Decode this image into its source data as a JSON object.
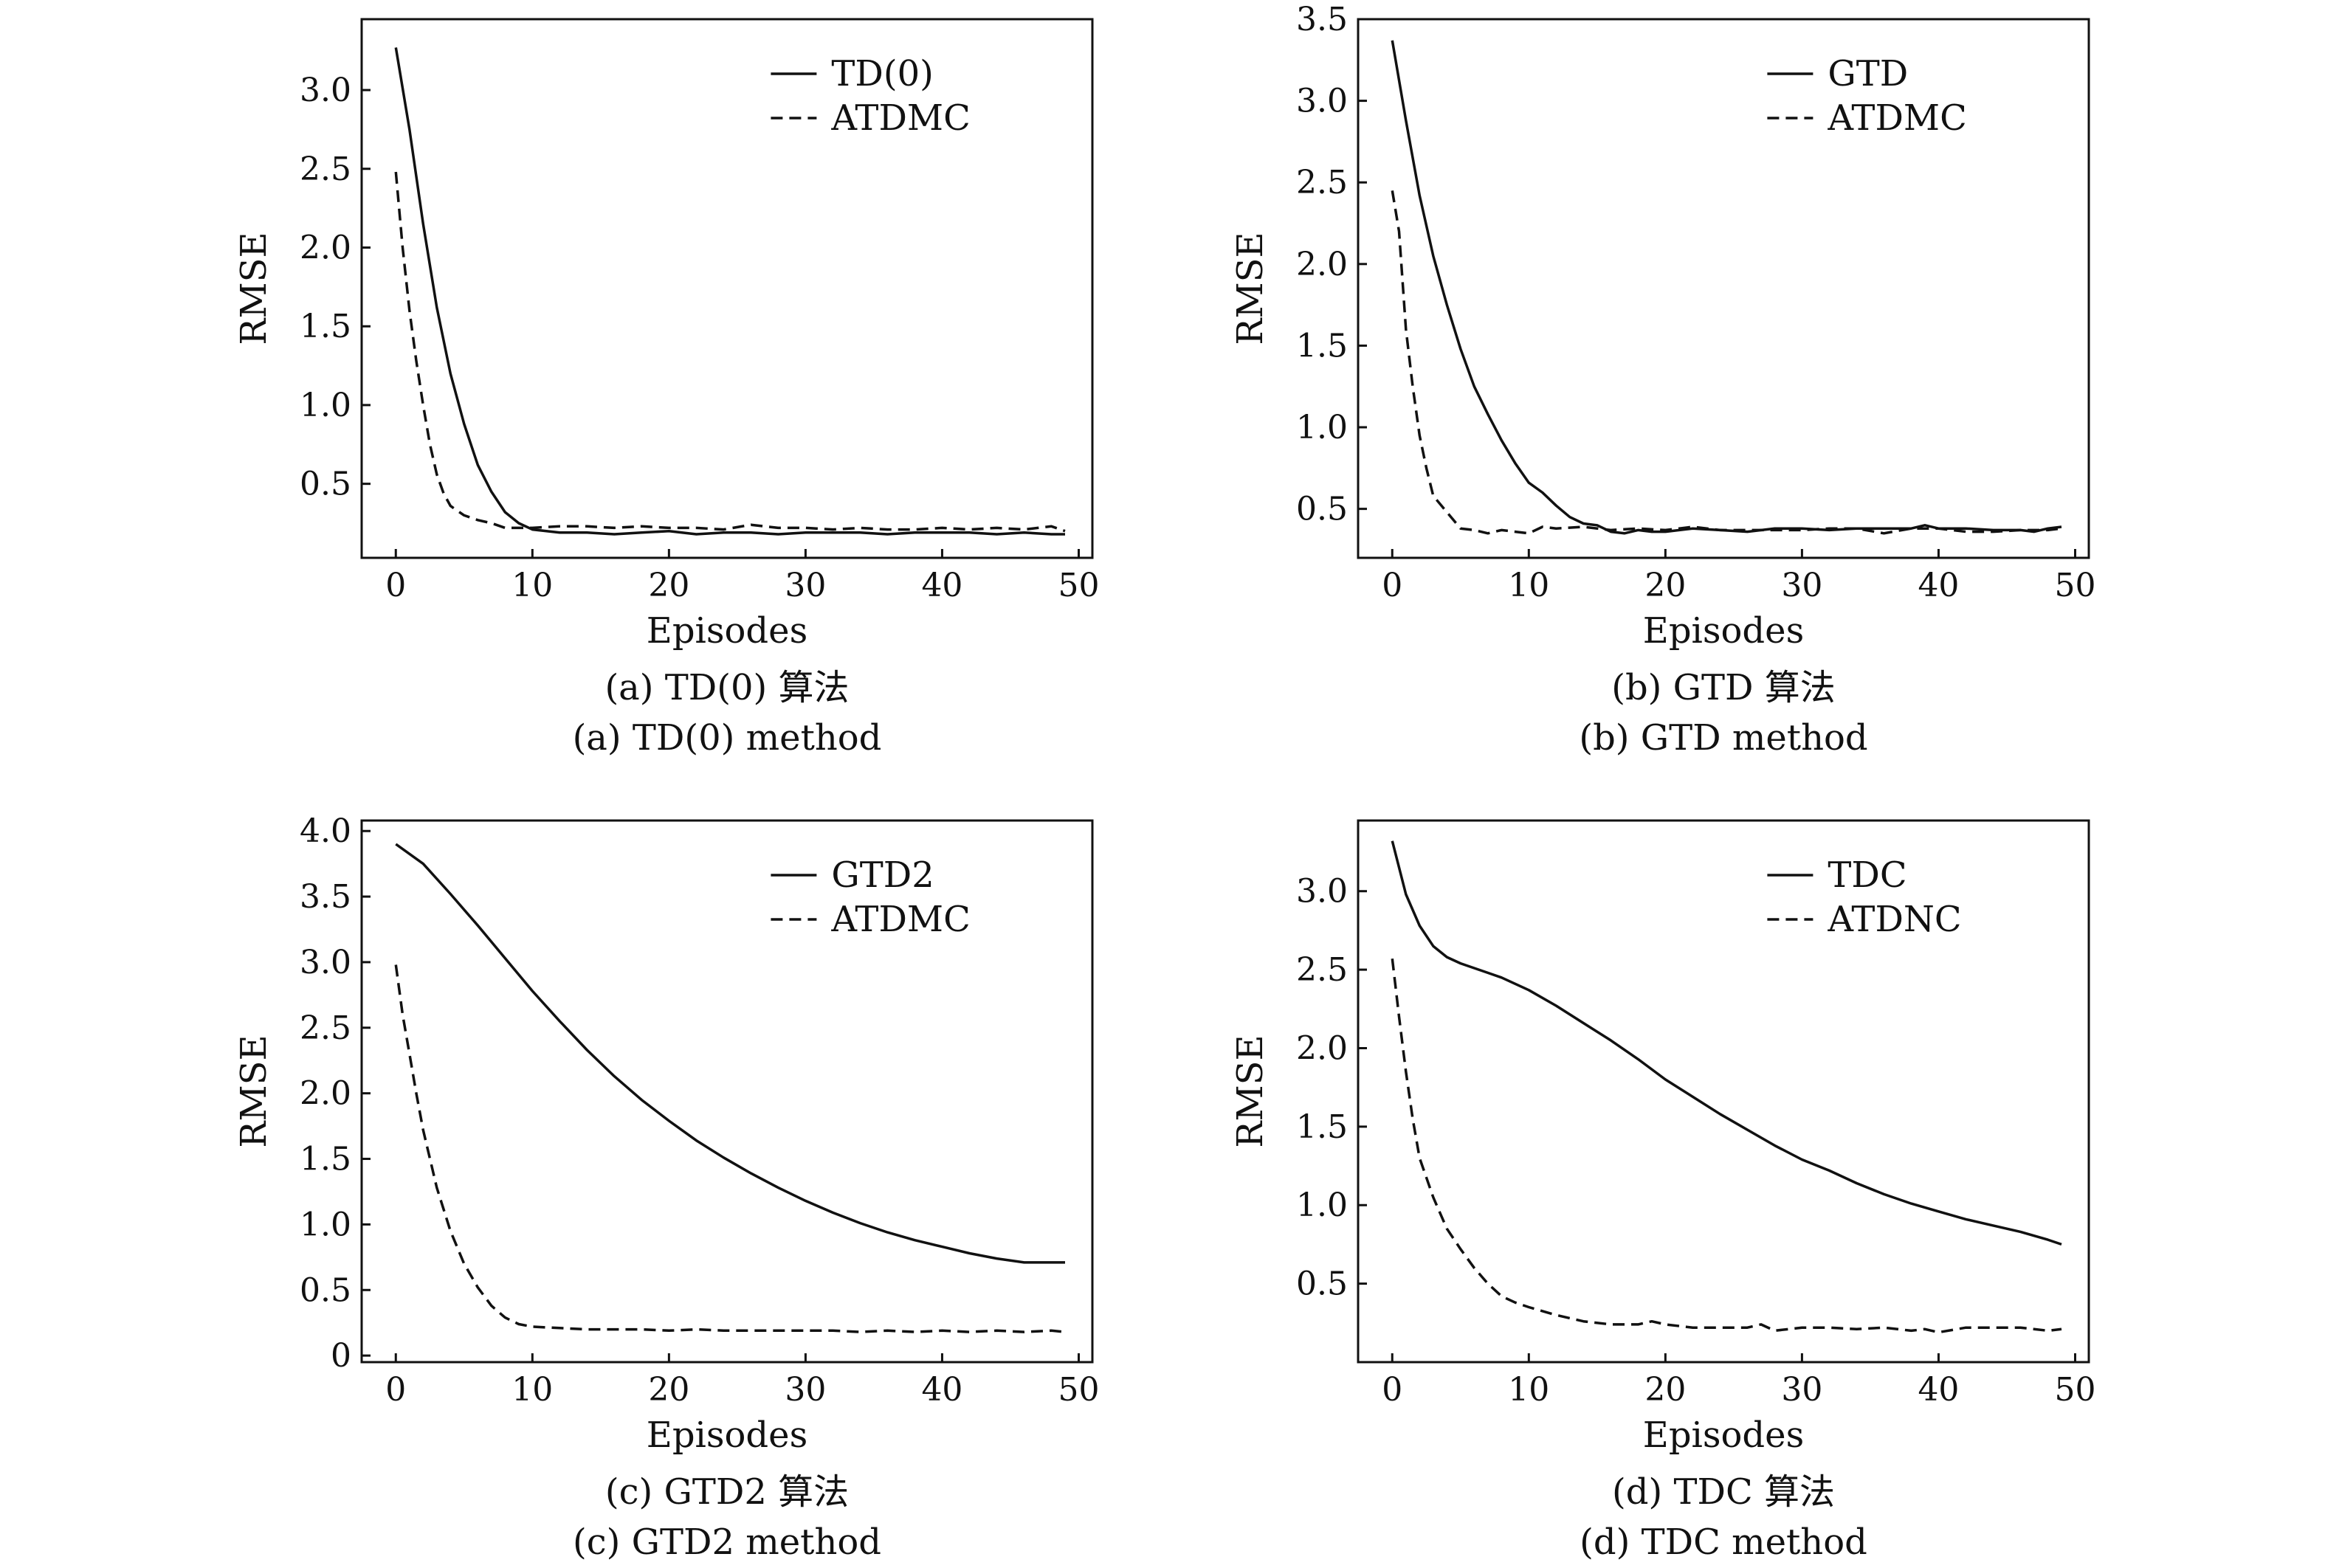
{
  "figure": {
    "colors": {
      "ink": "#111111",
      "background": "#ffffff"
    }
  },
  "chart_data": [
    {
      "type": "line",
      "xlabel": "Episodes",
      "ylabel": "RMSE",
      "caption_cn": "(a) TD(0) 算法",
      "caption_en": "(a) TD(0) method",
      "xlim": [
        -2.5,
        51
      ],
      "ylim": [
        0.03,
        3.45
      ],
      "xticks": [
        0,
        10,
        20,
        30,
        40,
        50
      ],
      "yticks": [
        0.5,
        1.0,
        1.5,
        2.0,
        2.5,
        3.0
      ],
      "ytick_labels": [
        "0.5",
        "1.0",
        "1.5",
        "2.0",
        "2.5",
        "3.0"
      ],
      "legend_position": "top-right",
      "series": [
        {
          "name": "TD(0)",
          "style": "solid",
          "x": [
            0,
            1,
            2,
            3,
            4,
            5,
            6,
            7,
            8,
            9,
            10,
            12,
            14,
            16,
            18,
            20,
            22,
            24,
            26,
            28,
            30,
            32,
            34,
            36,
            38,
            40,
            42,
            44,
            46,
            48,
            49
          ],
          "y": [
            3.27,
            2.75,
            2.15,
            1.62,
            1.2,
            0.88,
            0.62,
            0.45,
            0.32,
            0.25,
            0.21,
            0.19,
            0.19,
            0.18,
            0.19,
            0.2,
            0.18,
            0.19,
            0.19,
            0.18,
            0.19,
            0.19,
            0.19,
            0.18,
            0.19,
            0.19,
            0.19,
            0.18,
            0.19,
            0.18,
            0.18
          ]
        },
        {
          "name": "ATDMC",
          "style": "dashed",
          "x": [
            0,
            0.5,
            1,
            1.5,
            2,
            2.5,
            3,
            3.5,
            4,
            5,
            6,
            7,
            8,
            10,
            12,
            14,
            16,
            18,
            20,
            22,
            24,
            26,
            28,
            30,
            32,
            34,
            36,
            38,
            40,
            42,
            44,
            46,
            48,
            49
          ],
          "y": [
            2.48,
            2.0,
            1.6,
            1.28,
            1.0,
            0.75,
            0.56,
            0.44,
            0.36,
            0.3,
            0.27,
            0.25,
            0.22,
            0.22,
            0.23,
            0.23,
            0.22,
            0.23,
            0.22,
            0.22,
            0.21,
            0.24,
            0.22,
            0.22,
            0.21,
            0.22,
            0.21,
            0.21,
            0.22,
            0.21,
            0.22,
            0.21,
            0.23,
            0.2
          ]
        }
      ]
    },
    {
      "type": "line",
      "xlabel": "Episodes",
      "ylabel": "RMSE",
      "caption_cn": "(b) GTD 算法",
      "caption_en": "(b) GTD method",
      "xlim": [
        -2.5,
        51
      ],
      "ylim": [
        0.2,
        3.5
      ],
      "xticks": [
        0,
        10,
        20,
        30,
        40,
        50
      ],
      "yticks": [
        0.5,
        1.0,
        1.5,
        2.0,
        2.5,
        3.0,
        3.5
      ],
      "ytick_labels": [
        "0.5",
        "1.0",
        "1.5",
        "2.0",
        "2.5",
        "3.0",
        "3.5"
      ],
      "legend_position": "top-right",
      "series": [
        {
          "name": "GTD",
          "style": "solid",
          "x": [
            0,
            1,
            2,
            3,
            4,
            5,
            6,
            7,
            8,
            9,
            10,
            11,
            12,
            13,
            14,
            15,
            16,
            17,
            18,
            19,
            20,
            22,
            24,
            26,
            28,
            30,
            32,
            34,
            36,
            38,
            39,
            40,
            42,
            44,
            46,
            47,
            48,
            49
          ],
          "y": [
            3.37,
            2.88,
            2.42,
            2.05,
            1.75,
            1.48,
            1.25,
            1.08,
            0.92,
            0.78,
            0.66,
            0.6,
            0.52,
            0.45,
            0.41,
            0.4,
            0.36,
            0.35,
            0.37,
            0.36,
            0.36,
            0.38,
            0.37,
            0.36,
            0.38,
            0.38,
            0.37,
            0.38,
            0.38,
            0.38,
            0.4,
            0.38,
            0.38,
            0.37,
            0.37,
            0.36,
            0.38,
            0.39
          ]
        },
        {
          "name": "ATDMC",
          "style": "dashed",
          "x": [
            0,
            0.5,
            1,
            1.5,
            2,
            2.5,
            3,
            4,
            5,
            6,
            7,
            8,
            9,
            10,
            11,
            12,
            14,
            16,
            18,
            20,
            22,
            24,
            26,
            28,
            30,
            32,
            34,
            36,
            38,
            40,
            42,
            44,
            46,
            48,
            49
          ],
          "y": [
            2.45,
            2.2,
            1.6,
            1.25,
            0.95,
            0.75,
            0.58,
            0.48,
            0.38,
            0.37,
            0.35,
            0.37,
            0.36,
            0.35,
            0.39,
            0.38,
            0.39,
            0.37,
            0.38,
            0.37,
            0.39,
            0.37,
            0.37,
            0.37,
            0.37,
            0.38,
            0.38,
            0.35,
            0.38,
            0.38,
            0.36,
            0.36,
            0.37,
            0.37,
            0.38
          ]
        }
      ]
    },
    {
      "type": "line",
      "xlabel": "Episodes",
      "ylabel": "RMSE",
      "caption_cn": "(c) GTD2 算法",
      "caption_en": "(c) GTD2 method",
      "xlim": [
        -2.5,
        51
      ],
      "ylim": [
        -0.05,
        4.08
      ],
      "xticks": [
        0,
        10,
        20,
        30,
        40,
        50
      ],
      "yticks": [
        0,
        0.5,
        1.0,
        1.5,
        2.0,
        2.5,
        3.0,
        3.5,
        4.0
      ],
      "ytick_labels": [
        "0",
        "0.5",
        "1.0",
        "1.5",
        "2.0",
        "2.5",
        "3.0",
        "3.5",
        "4.0"
      ],
      "legend_position": "top-right",
      "series": [
        {
          "name": "GTD2",
          "style": "solid",
          "x": [
            0,
            2,
            4,
            6,
            8,
            10,
            12,
            14,
            16,
            18,
            20,
            22,
            24,
            26,
            28,
            30,
            32,
            34,
            36,
            38,
            40,
            42,
            44,
            46,
            48,
            49
          ],
          "y": [
            3.9,
            3.75,
            3.52,
            3.28,
            3.03,
            2.78,
            2.55,
            2.33,
            2.13,
            1.95,
            1.79,
            1.64,
            1.51,
            1.39,
            1.28,
            1.18,
            1.09,
            1.01,
            0.94,
            0.88,
            0.83,
            0.78,
            0.74,
            0.71,
            0.71,
            0.71
          ]
        },
        {
          "name": "ATDMC",
          "style": "dashed",
          "x": [
            0,
            0.5,
            1,
            1.5,
            2,
            3,
            4,
            5,
            6,
            7,
            8,
            9,
            10,
            12,
            14,
            16,
            18,
            20,
            22,
            24,
            26,
            28,
            30,
            32,
            34,
            36,
            38,
            40,
            42,
            44,
            46,
            48,
            49
          ],
          "y": [
            2.98,
            2.6,
            2.3,
            2.0,
            1.72,
            1.28,
            0.95,
            0.7,
            0.52,
            0.38,
            0.29,
            0.24,
            0.22,
            0.21,
            0.2,
            0.2,
            0.2,
            0.19,
            0.2,
            0.19,
            0.19,
            0.19,
            0.19,
            0.19,
            0.18,
            0.19,
            0.18,
            0.19,
            0.18,
            0.19,
            0.18,
            0.19,
            0.18
          ]
        }
      ]
    },
    {
      "type": "line",
      "xlabel": "Episodes",
      "ylabel": "RMSE",
      "caption_cn": "(d) TDC 算法",
      "caption_en": "(d) TDC method",
      "xlim": [
        -2.5,
        51
      ],
      "ylim": [
        0.0,
        3.45
      ],
      "xticks": [
        0,
        10,
        20,
        30,
        40,
        50
      ],
      "yticks": [
        0.5,
        1.0,
        1.5,
        2.0,
        2.5,
        3.0
      ],
      "ytick_labels": [
        "0.5",
        "1.0",
        "1.5",
        "2.0",
        "2.5",
        "3.0"
      ],
      "legend_position": "top-right",
      "series": [
        {
          "name": "TDC",
          "style": "solid",
          "x": [
            0,
            1,
            2,
            3,
            4,
            5,
            6,
            7,
            8,
            10,
            12,
            14,
            16,
            18,
            20,
            22,
            24,
            26,
            28,
            30,
            32,
            34,
            36,
            38,
            40,
            42,
            44,
            46,
            48,
            49
          ],
          "y": [
            3.32,
            2.98,
            2.78,
            2.65,
            2.58,
            2.54,
            2.51,
            2.48,
            2.45,
            2.37,
            2.27,
            2.16,
            2.05,
            1.93,
            1.8,
            1.69,
            1.58,
            1.48,
            1.38,
            1.29,
            1.22,
            1.14,
            1.07,
            1.01,
            0.96,
            0.91,
            0.87,
            0.83,
            0.78,
            0.75
          ]
        },
        {
          "name": "ATDNC",
          "style": "dashed",
          "x": [
            0,
            0.5,
            1,
            1.5,
            2,
            3,
            4,
            5,
            6,
            7,
            8,
            9,
            10,
            12,
            14,
            16,
            18,
            19,
            20,
            22,
            24,
            26,
            27,
            28,
            30,
            32,
            34,
            36,
            38,
            39,
            40,
            42,
            44,
            46,
            48,
            49
          ],
          "y": [
            2.57,
            2.2,
            1.85,
            1.55,
            1.3,
            1.05,
            0.85,
            0.72,
            0.6,
            0.5,
            0.42,
            0.38,
            0.35,
            0.3,
            0.26,
            0.24,
            0.24,
            0.26,
            0.24,
            0.22,
            0.22,
            0.22,
            0.24,
            0.2,
            0.22,
            0.22,
            0.21,
            0.22,
            0.2,
            0.21,
            0.19,
            0.22,
            0.22,
            0.22,
            0.2,
            0.21
          ]
        }
      ]
    }
  ]
}
